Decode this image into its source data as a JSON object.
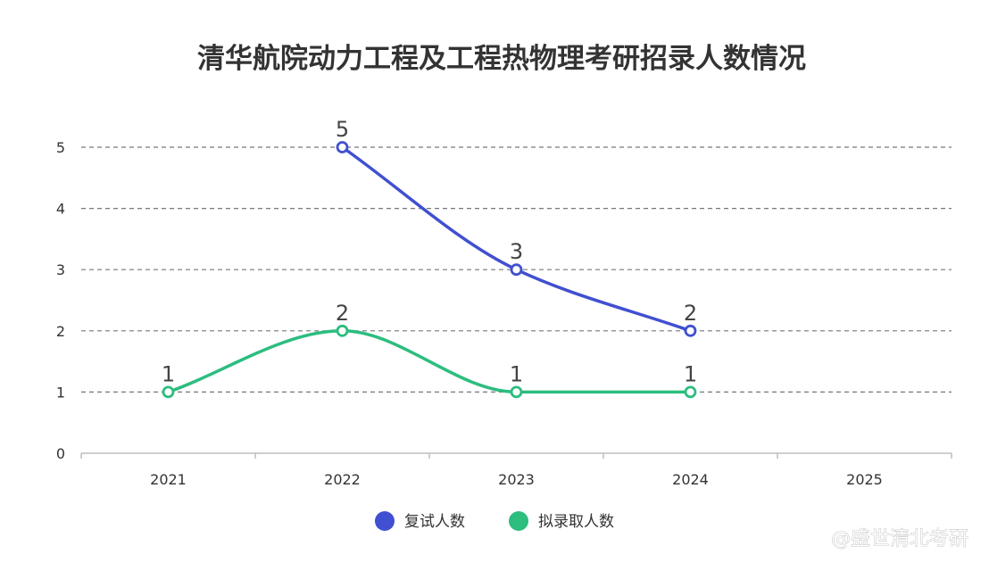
{
  "chart_data": {
    "type": "line",
    "title": "清华航院动力工程及工程热物理考研招录人数情况",
    "categories": [
      "2021",
      "2022",
      "2023",
      "2024",
      "2025"
    ],
    "ylim": [
      0,
      5
    ],
    "yticks": [
      "0",
      "1",
      "2",
      "3",
      "4",
      "5"
    ],
    "grid": true,
    "legend_position": "bottom",
    "series": [
      {
        "name": "复试人数",
        "color": "#4150d0",
        "values": [
          null,
          5,
          3,
          2,
          null
        ]
      },
      {
        "name": "拟录取人数",
        "color": "#2cbd7f",
        "values": [
          1,
          2,
          1,
          1,
          null
        ]
      }
    ]
  },
  "watermark": "@盛世清北考研"
}
